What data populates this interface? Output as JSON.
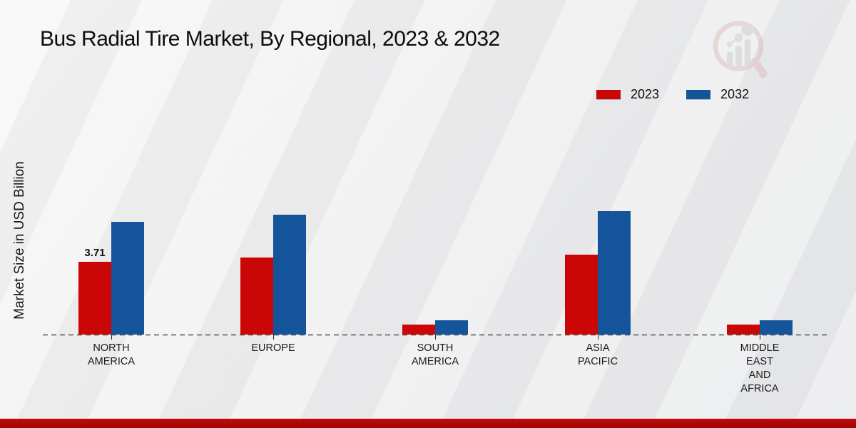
{
  "chart_data": {
    "type": "bar",
    "title": "Bus Radial Tire Market, By Regional, 2023 & 2032",
    "ylabel": "Market Size in USD Billion",
    "xlabel": "",
    "ylim": [
      0,
      7
    ],
    "grid": false,
    "legend_position": "top-right",
    "baseline_style": "dashed",
    "categories": [
      "NORTH AMERICA",
      "EUROPE",
      "SOUTH AMERICA",
      "ASIA PACIFIC",
      "MIDDLE EAST AND AFRICA"
    ],
    "category_label_lines": [
      [
        "NORTH",
        "AMERICA"
      ],
      [
        "EUROPE"
      ],
      [
        "SOUTH",
        "AMERICA"
      ],
      [
        "ASIA",
        "PACIFIC"
      ],
      [
        "MIDDLE",
        "EAST",
        "AND",
        "AFRICA"
      ]
    ],
    "series": [
      {
        "name": "2023",
        "color": "#cb0606",
        "values": [
          3.71,
          3.9,
          0.5,
          4.06,
          0.5
        ]
      },
      {
        "name": "2032",
        "color": "#14549a",
        "values": [
          5.72,
          6.1,
          0.72,
          6.28,
          0.72
        ]
      }
    ],
    "data_labels": [
      {
        "series": "2023",
        "category": "NORTH AMERICA",
        "text": "3.71"
      }
    ]
  },
  "colors": {
    "accent_red": "#cb0606",
    "accent_blue": "#14549a",
    "footer_red": "#b30606",
    "baseline_gray": "#555555"
  }
}
